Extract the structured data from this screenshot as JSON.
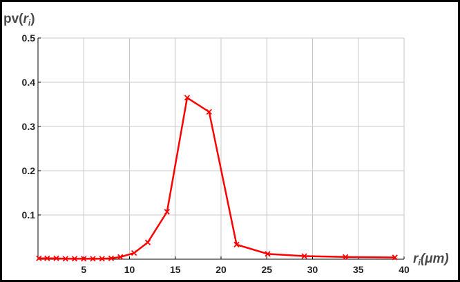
{
  "chart_data": {
    "type": "line",
    "title": "",
    "ylabel": {
      "base": "pv(",
      "var": "r",
      "sub": "i",
      "close": ")"
    },
    "xlabel": {
      "var": "r",
      "sub": "i",
      "unit": "(μm)"
    },
    "xlim": [
      0,
      40
    ],
    "ylim": [
      0,
      0.5
    ],
    "x_ticks": [
      5,
      10,
      15,
      20,
      25,
      30,
      35,
      40
    ],
    "x_tick_labels": [
      "5",
      "10",
      "15",
      "20",
      "25",
      "30",
      "35",
      "40"
    ],
    "y_ticks": [
      0.1,
      0.2,
      0.3,
      0.4,
      0.5
    ],
    "y_tick_labels": [
      "0.1",
      "0.2",
      "0.3",
      "0.4",
      "0.5"
    ],
    "grid": true,
    "series": [
      {
        "color": "#ff0000",
        "marker": "x",
        "x": [
          0.1,
          1.0,
          2.0,
          3.0,
          4.0,
          5.0,
          6.0,
          7.0,
          8.0,
          9.0,
          10.5,
          12.0,
          14.1,
          16.3,
          18.7,
          21.7,
          25.1,
          29.1,
          33.6,
          39.0
        ],
        "y": [
          0.002,
          0.002,
          0.002,
          0.001,
          0.001,
          0.001,
          0.001,
          0.001,
          0.002,
          0.005,
          0.014,
          0.038,
          0.107,
          0.365,
          0.333,
          0.033,
          0.012,
          0.007,
          0.005,
          0.004
        ]
      }
    ]
  }
}
